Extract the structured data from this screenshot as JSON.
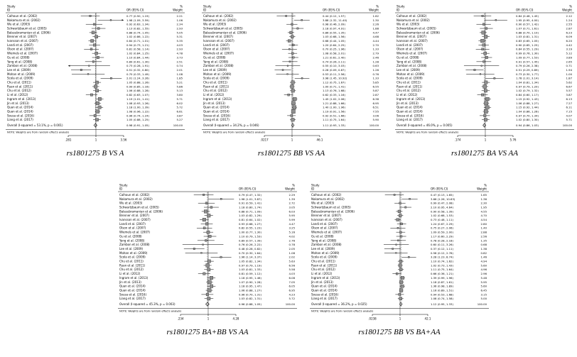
{
  "colors": {
    "marker": "#8f8f8f",
    "line": "#000000",
    "overall_dash": "#444444"
  },
  "chart_data": [
    {
      "type": "forest",
      "title": "rs1801275 B VS A",
      "columns": {
        "study": "Study",
        "id": "ID",
        "or": "OR (95% CI)",
        "pct": "%",
        "weight": "Weight"
      },
      "note": "NOTE: Weights are from random effects analysis",
      "axis": {
        "ticks": [
          0.281,
          1,
          3.56
        ],
        "labels": [
          ".281",
          "1",
          "3.56"
        ]
      },
      "studies": [
        [
          "Calhoun et al. (2002)",
          0.77,
          0.5,
          1.19,
          2.21
        ],
        [
          "Nakamura et al. (2002)",
          1.98,
          1.09,
          3.59,
          1.06
        ],
        [
          "Wu et al. (2003)",
          0.92,
          0.63,
          1.34,
          2.34
        ],
        [
          "Schwartzbaum et al. (2005)",
          1.13,
          0.82,
          1.55,
          2.93
        ],
        [
          "Balasubramanian et al. (2006)",
          0.88,
          0.74,
          1.05,
          5.05
        ],
        [
          "Brenner et al. (2007)",
          1.02,
          0.86,
          1.22,
          5.31
        ],
        [
          "Ivansson et al. (2007)",
          0.84,
          0.71,
          1.01,
          5.35
        ],
        [
          "Landi et al. (2007)",
          0.94,
          0.73,
          1.21,
          4.03
        ],
        [
          "Olson et al. (2007)",
          0.81,
          0.58,
          1.14,
          2.93
        ],
        [
          "Wiemels et al. (2007)",
          1.02,
          0.84,
          1.25,
          4.78
        ],
        [
          "Gu et al. (2008)",
          1.1,
          0.84,
          1.44,
          3.73
        ],
        [
          "Yang et al. (2008)",
          0.89,
          0.61,
          1.3,
          2.51
        ],
        [
          "Zambon et al. (2008)",
          0.73,
          0.28,
          1.91,
          0.74
        ],
        [
          "Lee et al. (2009)",
          0.51,
          0.32,
          0.8,
          2.01
        ],
        [
          "Mohan et al. (2009)",
          0.7,
          0.33,
          1.49,
          1.08
        ],
        [
          "Scola et al. (2009)",
          2.01,
          1.24,
          3.26,
          1.85
        ],
        [
          "Chu et al. (2011)",
          1.05,
          0.88,
          1.26,
          5.21
        ],
        [
          "Ruan et al. (2011)",
          0.99,
          0.85,
          1.16,
          5.86
        ],
        [
          "Chu et al. (2012)",
          1.06,
          0.88,
          1.28,
          5.13
        ],
        [
          "Li et al. (2012)",
          0.82,
          0.63,
          1.07,
          3.8
        ],
        [
          "Ingram et al. (2013)",
          1.19,
          1.01,
          1.41,
          5.71
        ],
        [
          "Jin et al. (2013)",
          1.08,
          0.93,
          1.26,
          6.02
        ],
        [
          "Quan et al. (2014)",
          1.18,
          1.0,
          1.39,
          5.72
        ],
        [
          "Quan et al. (2014)",
          1.08,
          0.96,
          1.22,
          6.61
        ],
        [
          "Sousa et al. (2016)",
          0.96,
          0.74,
          1.24,
          3.87
        ],
        [
          "Liang et al. (2017)",
          1.05,
          0.88,
          1.25,
          5.27
        ]
      ],
      "overall": {
        "label": "Overall (I-squared = 53.1%, p = 0.001)",
        "est": 0.98,
        "lo": 0.91,
        "hi": 1.05,
        "weight": 100.0
      }
    },
    {
      "type": "forest",
      "title": "rs1801275 BB VS AA",
      "columns": {
        "study": "Study",
        "id": "ID",
        "or": "OR (95% CI)",
        "pct": "%",
        "weight": "Weight"
      },
      "note": "NOTE: Weights are from random effects analysis",
      "axis": {
        "ticks": [
          0.0217,
          1,
          46.1
        ],
        "labels": [
          ".0217",
          "1",
          "46.1"
        ]
      },
      "studies": [
        [
          "Calhoun et al. (2002)",
          0.44,
          0.12,
          1.57,
          1.62
        ],
        [
          "Nakamura et al. (2002)",
          3.88,
          1.32,
          11.4,
          1.3
        ],
        [
          "Wu et al. (2003)",
          0.98,
          0.46,
          2.09,
          2.26
        ],
        [
          "Schwartzbaum et al. (2005)",
          2.18,
          0.97,
          4.91,
          1.88
        ],
        [
          "Balasubramanian et al. (2006)",
          0.86,
          0.55,
          1.35,
          4.47
        ],
        [
          "Brenner et al. (2007)",
          1.03,
          0.68,
          1.56,
          4.68
        ],
        [
          "Ivansson et al. (2007)",
          0.68,
          0.44,
          1.05,
          4.44
        ],
        [
          "Landi et al. (2007)",
          1.2,
          0.64,
          2.25,
          2.7
        ],
        [
          "Olson et al. (2007)",
          0.7,
          0.25,
          1.96,
          1.33
        ],
        [
          "Wiemels et al. (2007)",
          1.08,
          0.58,
          2.01,
          2.79
        ],
        [
          "Gu et al. (2008)",
          1.21,
          0.61,
          2.4,
          2.46
        ],
        [
          "Yang et al. (2008)",
          0.74,
          0.26,
          2.11,
          1.28
        ],
        [
          "Zambon et al. (2008)",
          0.55,
          0.1,
          3.03,
          0.63
        ],
        [
          "Lee et al. (2009)",
          0.28,
          0.09,
          0.87,
          1.26
        ],
        [
          "Mohan et al. (2009)",
          0.53,
          0.11,
          2.56,
          0.76
        ],
        [
          "Scola et al. (2009)",
          3.98,
          1.45,
          10.92,
          1.33
        ],
        [
          "Chu et al. (2011)",
          1.12,
          0.75,
          1.67,
          5.85
        ],
        [
          "Ruan et al. (2011)",
          1.0,
          0.71,
          1.41,
          6.55
        ],
        [
          "Chu et al. (2012)",
          1.13,
          0.76,
          1.68,
          5.87
        ],
        [
          "Li et al. (2012)",
          0.62,
          0.33,
          1.16,
          2.87
        ],
        [
          "Ingram et al. (2013)",
          1.45,
          1.02,
          2.06,
          6.38
        ],
        [
          "Jin et al. (2013)",
          1.21,
          0.88,
          1.66,
          6.95
        ],
        [
          "Quan et al. (2014)",
          1.4,
          1.0,
          1.96,
          6.51
        ],
        [
          "Quan et al. (2014)",
          1.19,
          0.91,
          1.56,
          7.55
        ],
        [
          "Sousa et al. (2016)",
          0.92,
          0.51,
          1.66,
          3.06
        ],
        [
          "Liang et al. (2017)",
          1.11,
          0.75,
          1.64,
          5.9
        ]
      ],
      "overall": {
        "label": "Overall (I-squared = 34.2%, p = 0.046)",
        "est": 1.11,
        "lo": 0.93,
        "hi": 1.33,
        "weight": 100.0
      }
    },
    {
      "type": "forest",
      "title": "rs1801275 BA VS AA",
      "columns": {
        "study": "Study",
        "id": "ID",
        "or": "OR (95% CI)",
        "pct": "%",
        "weight": "Weight"
      },
      "note": "NOTE: Weights are from random effects analysis",
      "axis": {
        "ticks": [
          0.174,
          1,
          5.76
        ],
        "labels": [
          ".174",
          "1",
          "5.76"
        ]
      },
      "studies": [
        [
          "Calhoun et al. (2002)",
          0.84,
          0.48,
          1.45,
          2.12
        ],
        [
          "Nakamura et al. (2002)",
          1.95,
          0.95,
          4.0,
          1.24
        ],
        [
          "Wu et al. (2003)",
          0.9,
          0.57,
          1.42,
          2.55
        ],
        [
          "Schwartzbaum et al. (2005)",
          1.07,
          0.71,
          1.61,
          2.87
        ],
        [
          "Balasubramanian et al. (2006)",
          0.88,
          0.7,
          1.1,
          6.23
        ],
        [
          "Brenner et al. (2007)",
          1.03,
          0.81,
          1.31,
          6.09
        ],
        [
          "Ivansson et al. (2007)",
          0.83,
          0.65,
          1.05,
          6.2
        ],
        [
          "Landi et al. (2007)",
          0.9,
          0.65,
          1.25,
          4.42
        ],
        [
          "Olson et al. (2007)",
          0.84,
          0.55,
          1.29,
          3.19
        ],
        [
          "Wiemels et al. (2007)",
          0.99,
          0.76,
          1.3,
          5.12
        ],
        [
          "Gu et al. (2008)",
          1.09,
          0.77,
          1.53,
          3.89
        ],
        [
          "Yang et al. (2008)",
          0.91,
          0.57,
          1.45,
          2.65
        ],
        [
          "Zambon et al. (2008)",
          0.79,
          0.26,
          2.38,
          0.71
        ],
        [
          "Lee et al. (2009)",
          0.51,
          0.29,
          0.89,
          1.94
        ],
        [
          "Mohan et al. (2009)",
          0.73,
          0.3,
          1.77,
          1.0
        ],
        [
          "Scola et al. (2009)",
          1.78,
          1.01,
          3.14,
          1.87
        ],
        [
          "Chu et al. (2011)",
          1.04,
          0.81,
          1.34,
          5.62
        ],
        [
          "Ruan et al. (2011)",
          0.97,
          0.79,
          1.2,
          6.67
        ],
        [
          "Chu et al. (2012)",
          1.02,
          0.79,
          1.32,
          5.57
        ],
        [
          "Li et al. (2012)",
          0.84,
          0.6,
          1.17,
          3.87
        ],
        [
          "Ingram et al. (2013)",
          1.15,
          0.92,
          1.43,
          6.13
        ],
        [
          "Jin et al. (2013)",
          1.06,
          0.88,
          1.27,
          7.27
        ],
        [
          "Quan et al. (2014)",
          1.15,
          0.92,
          1.44,
          6.11
        ],
        [
          "Quan et al. (2014)",
          1.04,
          0.86,
          1.26,
          7.15
        ],
        [
          "Sousa et al. (2016)",
          0.97,
          0.7,
          1.34,
          4.07
        ],
        [
          "Liang et al. (2017)",
          1.02,
          0.8,
          1.3,
          5.71
        ]
      ],
      "overall": {
        "label": "Overall (I-squared = 46.0%, p = 0.005)",
        "est": 0.94,
        "lo": 0.86,
        "hi": 1.03,
        "weight": 100.0
      }
    },
    {
      "type": "forest",
      "title": "rs1801275 BA+BB VS AA",
      "columns": {
        "study": "Study",
        "id": "ID",
        "or": "OR (95% CI)",
        "pct": "%",
        "weight": "Weight"
      },
      "note": "NOTE: Weights are from random effects analysis",
      "axis": {
        "ticks": [
          0.234,
          1,
          4.28
        ],
        "labels": [
          ".234",
          "1",
          "4.28"
        ]
      },
      "studies": [
        [
          "Calhoun et al. (2002)",
          0.79,
          0.47,
          1.32,
          2.29
        ],
        [
          "Nakamura et al. (2002)",
          1.98,
          1.01,
          3.87,
          1.39
        ],
        [
          "Wu et al. (2003)",
          0.91,
          0.59,
          1.41,
          2.72
        ],
        [
          "Schwartzbaum et al. (2005)",
          1.18,
          0.8,
          1.74,
          3.05
        ],
        [
          "Balasubramanian et al. (2006)",
          0.88,
          0.71,
          1.09,
          6.03
        ],
        [
          "Brenner et al. (2007)",
          1.03,
          0.82,
          1.29,
          5.95
        ],
        [
          "Ivansson et al. (2007)",
          0.81,
          0.64,
          1.02,
          5.99
        ],
        [
          "Landi et al. (2007)",
          0.93,
          0.68,
          1.27,
          4.47
        ],
        [
          "Olson et al. (2007)",
          0.82,
          0.55,
          1.23,
          3.25
        ],
        [
          "Wiemels et al. (2007)",
          1.0,
          0.77,
          1.3,
          5.16
        ],
        [
          "Gu et al. (2008)",
          1.1,
          0.79,
          1.53,
          4.02
        ],
        [
          "Yang et al. (2008)",
          0.89,
          0.57,
          1.39,
          2.76
        ],
        [
          "Zambon et al. (2008)",
          0.76,
          0.26,
          2.22,
          0.78
        ],
        [
          "Lee et al. (2009)",
          0.48,
          0.28,
          0.82,
          2.05
        ],
        [
          "Mohan et al. (2009)",
          0.7,
          0.3,
          1.64,
          1.08
        ],
        [
          "Scola et al. (2009)",
          1.96,
          1.14,
          3.37,
          2.02
        ],
        [
          "Chu et al. (2011)",
          1.05,
          0.82,
          1.34,
          5.63
        ],
        [
          "Ruan et al. (2011)",
          0.97,
          0.79,
          1.19,
          6.56
        ],
        [
          "Chu et al. (2012)",
          1.03,
          0.81,
          1.33,
          5.58
        ],
        [
          "Li et al. (2012)",
          0.81,
          0.59,
          1.12,
          4.03
        ],
        [
          "Ingram et al. (2013)",
          1.18,
          0.95,
          1.46,
          6.08
        ],
        [
          "Jin et al. (2013)",
          1.07,
          0.9,
          1.28,
          7.05
        ],
        [
          "Quan et al. (2014)",
          1.18,
          0.95,
          1.47,
          6.05
        ],
        [
          "Quan et al. (2014)",
          1.06,
          0.88,
          1.27,
          6.95
        ],
        [
          "Sousa et al. (2016)",
          0.96,
          0.7,
          1.31,
          4.23
        ],
        [
          "Liang et al. (2017)",
          1.03,
          0.82,
          1.31,
          5.72
        ]
      ],
      "overall": {
        "label": "Overall (I-squared = 45.3%, p = 0.003)",
        "est": 0.96,
        "lo": 0.88,
        "hi": 1.05,
        "weight": 100.0
      }
    },
    {
      "type": "forest",
      "title": "rs1801275 BB VS BA+AA",
      "columns": {
        "study": "Study",
        "id": "ID",
        "or": "OR (95% CI)",
        "pct": "%",
        "weight": "Weight"
      },
      "note": "NOTE: Weights are from random effects analysis",
      "axis": {
        "ticks": [
          0.0238,
          1,
          42.1
        ],
        "labels": [
          ".0238",
          "1",
          "42.1"
        ]
      },
      "studies": [
        [
          "Calhoun et al. (2002)",
          0.47,
          0.13,
          1.65,
          1.65
        ],
        [
          "Nakamura et al. (2002)",
          3.66,
          1.26,
          10.63,
          1.36
        ],
        [
          "Wu et al. (2003)",
          0.99,
          0.47,
          2.08,
          2.3
        ],
        [
          "Schwartzbaum et al. (2005)",
          2.1,
          0.95,
          4.64,
          1.95
        ],
        [
          "Balasubramanian et al. (2006)",
          0.9,
          0.58,
          1.39,
          4.55
        ],
        [
          "Brenner et al. (2007)",
          1.02,
          0.68,
          1.53,
          4.7
        ],
        [
          "Ivansson et al. (2007)",
          0.73,
          0.48,
          1.11,
          4.54
        ],
        [
          "Landi et al. (2007)",
          1.24,
          0.67,
          2.29,
          2.8
        ],
        [
          "Olson et al. (2007)",
          0.75,
          0.27,
          2.06,
          1.4
        ],
        [
          "Wiemels et al. (2007)",
          1.09,
          0.59,
          2.0,
          2.88
        ],
        [
          "Gu et al. (2008)",
          1.17,
          0.6,
          2.29,
          2.56
        ],
        [
          "Yang et al. (2008)",
          0.78,
          0.28,
          2.18,
          1.35
        ],
        [
          "Zambon et al. (2008)",
          0.6,
          0.11,
          3.26,
          0.68
        ],
        [
          "Lee et al. (2009)",
          0.37,
          0.12,
          1.11,
          1.38
        ],
        [
          "Mohan et al. (2009)",
          0.58,
          0.12,
          2.76,
          0.82
        ],
        [
          "Scola et al. (2009)",
          3.28,
          1.23,
          8.74,
          1.46
        ],
        [
          "Chu et al. (2011)",
          1.1,
          0.74,
          1.62,
          4.94
        ],
        [
          "Ruan et al. (2011)",
          1.02,
          0.73,
          1.43,
          5.6
        ],
        [
          "Chu et al. (2012)",
          1.11,
          0.75,
          1.64,
          4.96
        ],
        [
          "Li et al. (2012)",
          0.66,
          0.36,
          1.21,
          2.96
        ],
        [
          "Ingram et al. (2013)",
          1.39,
          0.99,
          1.96,
          5.48
        ],
        [
          "Jin et al. (2013)",
          1.18,
          0.87,
          1.61,
          5.95
        ],
        [
          "Quan et al. (2014)",
          1.36,
          0.98,
          1.89,
          5.6
        ],
        [
          "Quan et al. (2014)",
          1.16,
          0.89,
          1.51,
          6.45
        ],
        [
          "Sousa et al. (2016)",
          0.94,
          0.53,
          1.68,
          3.15
        ],
        [
          "Liang et al. (2017)",
          1.08,
          0.74,
          1.58,
          5.0
        ]
      ],
      "overall": {
        "label": "Overall (I-squared = 36.2%, p = 0.025)",
        "est": 1.12,
        "lo": 0.95,
        "hi": 1.33,
        "weight": 100.0
      }
    }
  ]
}
